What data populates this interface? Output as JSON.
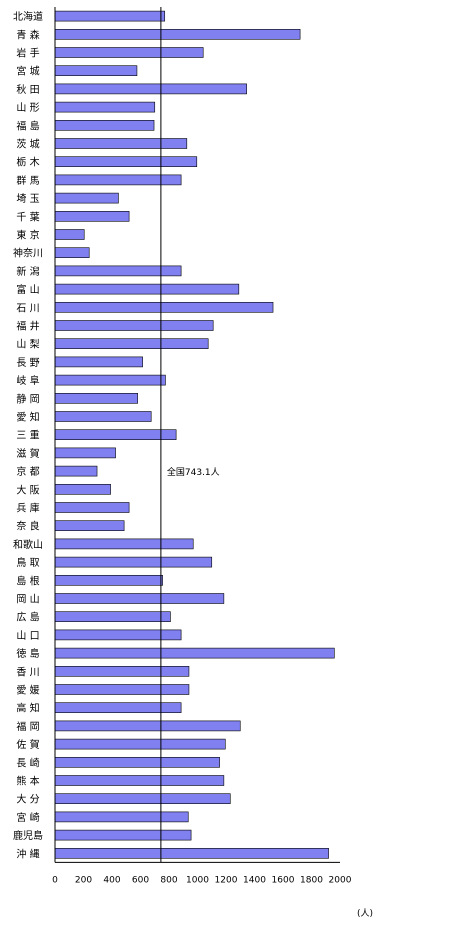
{
  "chart_data": {
    "type": "bar",
    "orientation": "horizontal",
    "categories": [
      "北海道",
      "青 森",
      "岩 手",
      "宮 城",
      "秋 田",
      "山 形",
      "福 島",
      "茨 城",
      "栃 木",
      "群 馬",
      "埼 玉",
      "千 葉",
      "東 京",
      "神奈川",
      "新 潟",
      "富 山",
      "石 川",
      "福 井",
      "山 梨",
      "長 野",
      "岐 阜",
      "静 岡",
      "愛 知",
      "三 重",
      "滋 賀",
      "京 都",
      "大 阪",
      "兵 庫",
      "奈 良",
      "和歌山",
      "鳥 取",
      "島 根",
      "岡 山",
      "広 島",
      "山 口",
      "徳 島",
      "香 川",
      "愛 媛",
      "高 知",
      "福 岡",
      "佐 賀",
      "長 崎",
      "熊 本",
      "大 分",
      "宮 崎",
      "鹿児島",
      "沖 縄"
    ],
    "values": [
      770,
      1720,
      1040,
      575,
      1345,
      700,
      695,
      925,
      995,
      885,
      445,
      520,
      205,
      240,
      885,
      1290,
      1530,
      1110,
      1075,
      615,
      775,
      580,
      675,
      850,
      425,
      295,
      390,
      520,
      485,
      970,
      1100,
      755,
      1185,
      810,
      885,
      1960,
      940,
      940,
      885,
      1300,
      1195,
      1155,
      1185,
      1230,
      935,
      955,
      1920
    ],
    "xlim": [
      0,
      2000
    ],
    "xticks": [
      "0",
      "200",
      "400",
      "600",
      "800",
      "1000",
      "1200",
      "1400",
      "1600",
      "1800",
      "2000"
    ],
    "unit": "(人)",
    "reference_line": {
      "value": 743.1,
      "label": "全国743.1人"
    },
    "bar_color": "#8080f0",
    "grid": false,
    "legend": "none"
  }
}
